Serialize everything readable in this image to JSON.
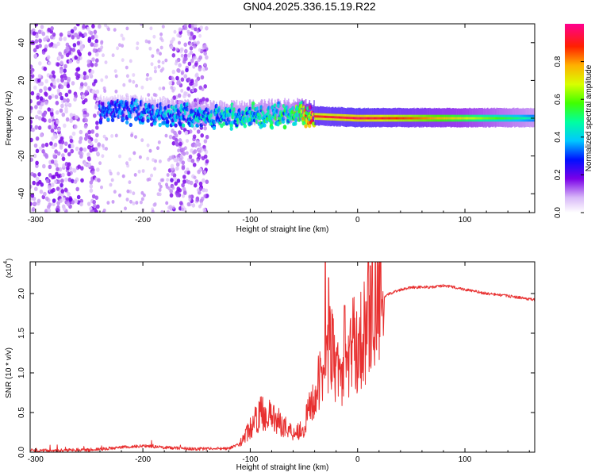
{
  "title": "GN04.2025.336.15.19.R22",
  "colors": {
    "snr_line": "#e83030",
    "axis": "#000000",
    "spectrogram_background": "#ffffff"
  },
  "chart_data": [
    {
      "type": "heatmap",
      "name": "spectrogram",
      "xlabel": "Height of straight line (km)",
      "ylabel": "Frequency (Hz)",
      "xlim": [
        -305,
        165
      ],
      "ylim": [
        -50,
        50
      ],
      "x_ticks": [
        -300,
        -200,
        -100,
        0,
        100
      ],
      "x_tick_labels": [
        "-300",
        "-200",
        "-100",
        "0",
        "100"
      ],
      "y_ticks": [
        -40,
        -20,
        0,
        20,
        40
      ],
      "y_tick_labels": [
        "-40",
        "-20",
        "0",
        "20",
        "40"
      ],
      "description_series": [
        {
          "name": "noise_scatter_left",
          "x_range": [
            -305,
            -240
          ],
          "freq_range": [
            -50,
            50
          ],
          "amplitude": 0.15
        },
        {
          "name": "noise_scatter_middle",
          "x_range": [
            -175,
            -140
          ],
          "freq_range": [
            -50,
            50
          ],
          "amplitude": 0.15
        },
        {
          "name": "signal_band",
          "x": [
            -240,
            -200,
            -150,
            -100,
            -60,
            -40,
            0,
            50,
            100,
            165
          ],
          "center_freq": [
            4,
            3,
            1,
            1,
            2,
            1,
            0,
            0,
            0,
            0
          ],
          "amplitude": [
            0.3,
            0.35,
            0.4,
            0.45,
            0.5,
            0.9,
            0.95,
            0.85,
            0.7,
            0.45
          ]
        }
      ],
      "colorbar": {
        "label": "Normalized spectral amplitude",
        "range": [
          0.0,
          1.0
        ],
        "ticks": [
          0.0,
          0.2,
          0.4,
          0.6,
          0.8
        ],
        "tick_labels": [
          "0.0",
          "0.2",
          "0.4",
          "0.6",
          "0.8"
        ],
        "stops": [
          {
            "value": 0.0,
            "color": "#ffffff"
          },
          {
            "value": 0.08,
            "color": "#d8b8f8"
          },
          {
            "value": 0.18,
            "color": "#7a00e8"
          },
          {
            "value": 0.28,
            "color": "#0010ff"
          },
          {
            "value": 0.38,
            "color": "#00c8ff"
          },
          {
            "value": 0.48,
            "color": "#00ffa0"
          },
          {
            "value": 0.58,
            "color": "#40ff00"
          },
          {
            "value": 0.68,
            "color": "#d8ff00"
          },
          {
            "value": 0.78,
            "color": "#ffb000"
          },
          {
            "value": 0.88,
            "color": "#ff2000"
          },
          {
            "value": 1.0,
            "color": "#ff0090"
          }
        ]
      }
    },
    {
      "type": "line",
      "name": "snr",
      "xlabel": "Height of straight line (km)",
      "ylabel": "SNR (10 * v/v)",
      "y_scale_label": "(x10",
      "y_scale_exponent": "4",
      "y_scale_close": ")",
      "xlim": [
        -305,
        165
      ],
      "ylim": [
        0,
        2.4
      ],
      "x_ticks": [
        -300,
        -200,
        -100,
        0,
        100
      ],
      "x_tick_labels": [
        "-300",
        "-200",
        "-100",
        "0",
        "100"
      ],
      "y_ticks": [
        0.0,
        0.5,
        1.0,
        1.5,
        2.0
      ],
      "y_tick_labels": [
        "0.0",
        "0.5",
        "1.0",
        "1.5",
        "2.0"
      ],
      "series": [
        {
          "name": "SNR",
          "x": [
            -305,
            -250,
            -220,
            -200,
            -180,
            -150,
            -120,
            -110,
            -100,
            -90,
            -80,
            -70,
            -60,
            -50,
            -45,
            -40,
            -35,
            -30,
            -25,
            -20,
            -15,
            -10,
            -5,
            0,
            5,
            10,
            15,
            20,
            25,
            30,
            40,
            50,
            60,
            70,
            80,
            90,
            100,
            120,
            140,
            165
          ],
          "y": [
            0.02,
            0.03,
            0.06,
            0.08,
            0.06,
            0.04,
            0.05,
            0.1,
            0.3,
            0.5,
            0.45,
            0.35,
            0.25,
            0.3,
            0.55,
            0.7,
            0.9,
            1.1,
            1.35,
            1.0,
            1.05,
            1.05,
            1.4,
            1.3,
            1.5,
            1.6,
            1.85,
            1.9,
            1.95,
            2.0,
            2.05,
            2.08,
            2.08,
            2.08,
            2.1,
            2.08,
            2.05,
            2.0,
            1.97,
            1.92
          ],
          "spikes": [
            {
              "x": -30,
              "y": 2.4
            },
            {
              "x": -27,
              "y": 2.2
            },
            {
              "x": -12,
              "y": 1.85
            },
            {
              "x": 10,
              "y": 2.4
            },
            {
              "x": 12,
              "y": 2.35
            }
          ]
        }
      ]
    }
  ]
}
